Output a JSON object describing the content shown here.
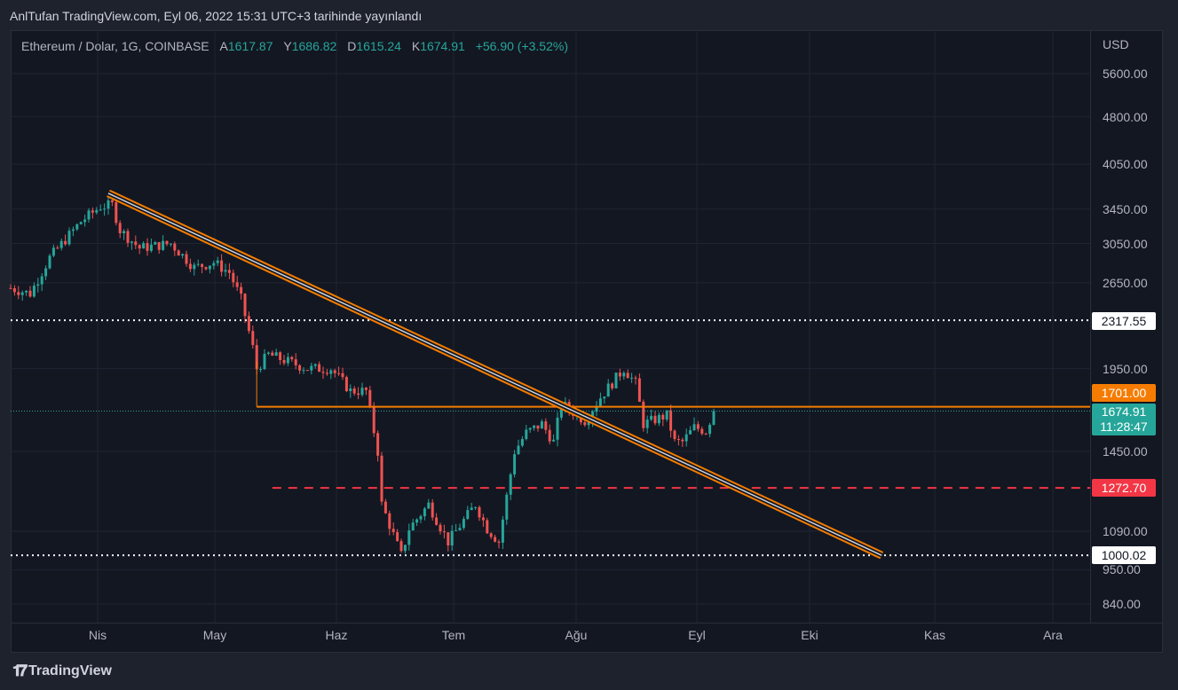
{
  "published": "AnlTufan TradingView.com, Eyl 06, 2022 15:31 UTC+3 tarihinde yayınlandı",
  "legend": {
    "symbol": "Ethereum / Dolar, 1G, COINBASE",
    "open_label": "A",
    "open": "1617.87",
    "high_label": "Y",
    "high": "1686.82",
    "low_label": "D",
    "low": "1615.24",
    "close_label": "K",
    "close": "1674.91",
    "change": "+56.90 (+3.52%)"
  },
  "currency": "USD",
  "tags": {
    "upper_dotted": "2317.55",
    "orange": "1701.00",
    "current": "1674.91",
    "countdown": "11:28:47",
    "red": "1272.70",
    "lower_dotted": "1000.02"
  },
  "colors": {
    "up": "#26a69a",
    "down": "#ef5350",
    "orange": "#f57c00",
    "red": "#f23645",
    "bg": "#131722"
  },
  "logo": "TradingView",
  "chart_data": {
    "type": "candlestick",
    "scale": "log",
    "price_ticks": [
      "5600.00",
      "4800.00",
      "4050.00",
      "3450.00",
      "3050.00",
      "2650.00",
      "1950.00",
      "1450.00",
      "1090.00",
      "950.00",
      "840.00"
    ],
    "time_ticks": [
      "Nis",
      "May",
      "Haz",
      "Tem",
      "Ağu",
      "Eyl",
      "Eki",
      "Kas",
      "Ara"
    ],
    "close_path": [
      [
        "2022-03-10",
        2600
      ],
      [
        "2022-03-15",
        2550
      ],
      [
        "2022-03-20",
        2900
      ],
      [
        "2022-03-28",
        3300
      ],
      [
        "2022-04-02",
        3480
      ],
      [
        "2022-04-05",
        3500
      ],
      [
        "2022-04-07",
        3200
      ],
      [
        "2022-04-12",
        3000
      ],
      [
        "2022-04-20",
        3050
      ],
      [
        "2022-04-26",
        2800
      ],
      [
        "2022-05-01",
        2850
      ],
      [
        "2022-05-05",
        2750
      ],
      [
        "2022-05-08",
        2500
      ],
      [
        "2022-05-11",
        2100
      ],
      [
        "2022-05-12",
        1950
      ],
      [
        "2022-05-15",
        2050
      ],
      [
        "2022-05-25",
        1950
      ],
      [
        "2022-05-31",
        1950
      ],
      [
        "2022-06-05",
        1800
      ],
      [
        "2022-06-09",
        1800
      ],
      [
        "2022-06-12",
        1450
      ],
      [
        "2022-06-13",
        1200
      ],
      [
        "2022-06-18",
        1000
      ],
      [
        "2022-06-20",
        1100
      ],
      [
        "2022-06-25",
        1200
      ],
      [
        "2022-06-30",
        1050
      ],
      [
        "2022-07-07",
        1200
      ],
      [
        "2022-07-10",
        1100
      ],
      [
        "2022-07-13",
        1050
      ],
      [
        "2022-07-17",
        1450
      ],
      [
        "2022-07-20",
        1550
      ],
      [
        "2022-07-24",
        1600
      ],
      [
        "2022-07-27",
        1500
      ],
      [
        "2022-07-29",
        1720
      ],
      [
        "2022-08-04",
        1620
      ],
      [
        "2022-08-08",
        1760
      ],
      [
        "2022-08-14",
        1950
      ],
      [
        "2022-08-17",
        1850
      ],
      [
        "2022-08-19",
        1600
      ],
      [
        "2022-08-25",
        1650
      ],
      [
        "2022-08-27",
        1500
      ],
      [
        "2022-08-29",
        1500
      ],
      [
        "2022-09-01",
        1580
      ],
      [
        "2022-09-04",
        1560
      ],
      [
        "2022-09-06",
        1675
      ]
    ],
    "levels": [
      {
        "name": "resistance-2317",
        "price": 2317.55,
        "style": "dotted-white"
      },
      {
        "name": "horizontal-1701",
        "price": 1701.0,
        "style": "solid-orange",
        "from": "2022-05-12"
      },
      {
        "name": "support-1272",
        "price": 1272.7,
        "style": "dashed-red",
        "from": "2022-05-16"
      },
      {
        "name": "support-1000",
        "price": 1000.02,
        "style": "dotted-white"
      }
    ],
    "trendline": {
      "from": [
        "2022-04-04",
        3650
      ],
      "to": [
        "2022-10-19",
        1000
      ]
    }
  }
}
